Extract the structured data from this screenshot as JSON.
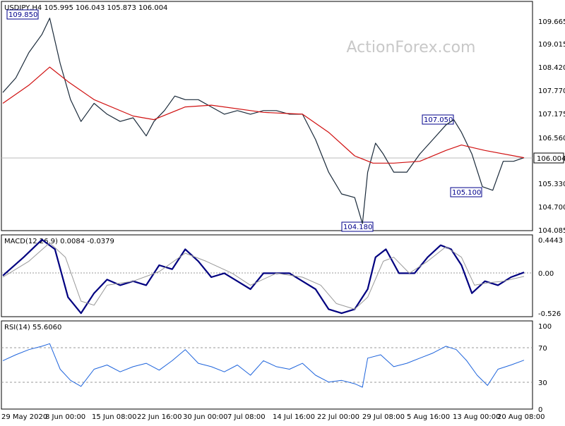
{
  "header": {
    "symbol_line": "USDJPY,H4  105.995 106.043 105.873 106.004",
    "watermark": "ActionForex.com"
  },
  "price_panel": {
    "y_ticks": [
      "109.665",
      "109.015",
      "108.420",
      "107.770",
      "107.175",
      "106.560",
      "105.330",
      "104.700",
      "104.085"
    ],
    "last_price_tag": "106.004",
    "annotations": [
      {
        "text": "109.850"
      },
      {
        "text": "107.050"
      },
      {
        "text": "105.100"
      },
      {
        "text": "104.180"
      }
    ]
  },
  "macd_panel": {
    "label": "MACD(12,26,9) 0.0084 -0.0379",
    "y_ticks": [
      "0.4443",
      "0.00",
      "-0.526"
    ]
  },
  "rsi_panel": {
    "label": "RSI(14) 55.6060",
    "y_ticks": [
      "100",
      "70",
      "30",
      "0"
    ]
  },
  "x_ticks": [
    "29 May 2020",
    "8 Jun 00:00",
    "15 Jun 08:00",
    "22 Jun 16:00",
    "30 Jun 00:00",
    "7 Jul 08:00",
    "14 Jul 16:00",
    "22 Jul 00:00",
    "29 Jul 08:00",
    "5 Aug 16:00",
    "13 Aug 00:00",
    "20 Aug 08:00"
  ],
  "chart_data": [
    {
      "type": "line",
      "title": "USDJPY,H4",
      "ylim": [
        104.085,
        110.0
      ],
      "series": [
        {
          "name": "USDJPY",
          "points": [
            [
              0,
              107.8
            ],
            [
              5,
              108.2
            ],
            [
              10,
              108.9
            ],
            [
              15,
              109.4
            ],
            [
              18,
              109.85
            ],
            [
              22,
              108.6
            ],
            [
              26,
              107.6
            ],
            [
              30,
              107.0
            ],
            [
              35,
              107.5
            ],
            [
              40,
              107.2
            ],
            [
              45,
              107.0
            ],
            [
              50,
              107.1
            ],
            [
              55,
              106.6
            ],
            [
              58,
              107.0
            ],
            [
              62,
              107.3
            ],
            [
              66,
              107.7
            ],
            [
              70,
              107.6
            ],
            [
              75,
              107.6
            ],
            [
              80,
              107.4
            ],
            [
              85,
              107.2
            ],
            [
              90,
              107.3
            ],
            [
              95,
              107.2
            ],
            [
              100,
              107.3
            ],
            [
              105,
              107.3
            ],
            [
              110,
              107.2
            ],
            [
              115,
              107.2
            ],
            [
              120,
              106.5
            ],
            [
              125,
              105.6
            ],
            [
              130,
              105.0
            ],
            [
              135,
              104.9
            ],
            [
              138,
              104.18
            ],
            [
              140,
              105.6
            ],
            [
              143,
              106.4
            ],
            [
              146,
              106.1
            ],
            [
              150,
              105.6
            ],
            [
              155,
              105.6
            ],
            [
              160,
              106.1
            ],
            [
              165,
              106.5
            ],
            [
              170,
              106.9
            ],
            [
              173,
              107.05
            ],
            [
              176,
              106.7
            ],
            [
              180,
              106.1
            ],
            [
              184,
              105.2
            ],
            [
              188,
              105.1
            ],
            [
              192,
              105.9
            ],
            [
              196,
              105.9
            ],
            [
              200,
              106.0
            ]
          ]
        },
        {
          "name": "MA",
          "points": [
            [
              0,
              107.5
            ],
            [
              10,
              108.0
            ],
            [
              18,
              108.5
            ],
            [
              25,
              108.1
            ],
            [
              35,
              107.6
            ],
            [
              50,
              107.15
            ],
            [
              58,
              107.05
            ],
            [
              70,
              107.4
            ],
            [
              80,
              107.45
            ],
            [
              100,
              107.25
            ],
            [
              115,
              107.2
            ],
            [
              125,
              106.7
            ],
            [
              135,
              106.05
            ],
            [
              142,
              105.85
            ],
            [
              150,
              105.85
            ],
            [
              160,
              105.9
            ],
            [
              170,
              106.2
            ],
            [
              176,
              106.35
            ],
            [
              185,
              106.2
            ],
            [
              200,
              106.0
            ]
          ]
        }
      ]
    },
    {
      "type": "line",
      "title": "MACD(12,26,9)",
      "ylim": [
        -0.526,
        0.4443
      ],
      "series": [
        {
          "name": "MACD",
          "points": [
            [
              0,
              -0.03
            ],
            [
              8,
              0.2
            ],
            [
              15,
              0.42
            ],
            [
              20,
              0.3
            ],
            [
              25,
              -0.3
            ],
            [
              30,
              -0.5
            ],
            [
              35,
              -0.25
            ],
            [
              40,
              -0.08
            ],
            [
              45,
              -0.15
            ],
            [
              50,
              -0.1
            ],
            [
              55,
              -0.15
            ],
            [
              60,
              0.1
            ],
            [
              65,
              0.05
            ],
            [
              70,
              0.3
            ],
            [
              75,
              0.15
            ],
            [
              80,
              -0.05
            ],
            [
              85,
              0.0
            ],
            [
              90,
              -0.1
            ],
            [
              95,
              -0.2
            ],
            [
              100,
              0.0
            ],
            [
              105,
              0.0
            ],
            [
              110,
              0.0
            ],
            [
              115,
              -0.1
            ],
            [
              120,
              -0.2
            ],
            [
              125,
              -0.45
            ],
            [
              130,
              -0.5
            ],
            [
              135,
              -0.45
            ],
            [
              140,
              -0.2
            ],
            [
              143,
              0.2
            ],
            [
              147,
              0.3
            ],
            [
              152,
              0.0
            ],
            [
              158,
              0.0
            ],
            [
              163,
              0.2
            ],
            [
              168,
              0.35
            ],
            [
              172,
              0.3
            ],
            [
              176,
              0.1
            ],
            [
              180,
              -0.25
            ],
            [
              185,
              -0.1
            ],
            [
              190,
              -0.15
            ],
            [
              195,
              -0.05
            ],
            [
              200,
              0.01
            ]
          ]
        },
        {
          "name": "Signal",
          "points": [
            [
              0,
              -0.05
            ],
            [
              10,
              0.15
            ],
            [
              18,
              0.38
            ],
            [
              24,
              0.2
            ],
            [
              30,
              -0.35
            ],
            [
              35,
              -0.4
            ],
            [
              40,
              -0.15
            ],
            [
              50,
              -0.1
            ],
            [
              60,
              0.02
            ],
            [
              70,
              0.25
            ],
            [
              78,
              0.15
            ],
            [
              88,
              0.0
            ],
            [
              95,
              -0.15
            ],
            [
              105,
              0.0
            ],
            [
              115,
              -0.05
            ],
            [
              122,
              -0.15
            ],
            [
              128,
              -0.38
            ],
            [
              135,
              -0.45
            ],
            [
              140,
              -0.3
            ],
            [
              146,
              0.15
            ],
            [
              150,
              0.2
            ],
            [
              156,
              0.0
            ],
            [
              163,
              0.15
            ],
            [
              170,
              0.33
            ],
            [
              176,
              0.2
            ],
            [
              181,
              -0.15
            ],
            [
              186,
              -0.12
            ],
            [
              192,
              -0.1
            ],
            [
              200,
              -0.04
            ]
          ]
        }
      ]
    },
    {
      "type": "line",
      "title": "RSI(14)",
      "ylim": [
        0,
        100
      ],
      "series": [
        {
          "name": "RSI",
          "points": [
            [
              0,
              55
            ],
            [
              5,
              62
            ],
            [
              10,
              68
            ],
            [
              15,
              72
            ],
            [
              18,
              75
            ],
            [
              22,
              45
            ],
            [
              26,
              32
            ],
            [
              30,
              25
            ],
            [
              35,
              45
            ],
            [
              40,
              50
            ],
            [
              45,
              42
            ],
            [
              50,
              48
            ],
            [
              55,
              52
            ],
            [
              60,
              44
            ],
            [
              65,
              55
            ],
            [
              70,
              68
            ],
            [
              75,
              52
            ],
            [
              80,
              48
            ],
            [
              85,
              42
            ],
            [
              90,
              50
            ],
            [
              95,
              38
            ],
            [
              100,
              55
            ],
            [
              105,
              48
            ],
            [
              110,
              45
            ],
            [
              115,
              52
            ],
            [
              120,
              38
            ],
            [
              125,
              30
            ],
            [
              130,
              32
            ],
            [
              135,
              28
            ],
            [
              138,
              24
            ],
            [
              140,
              58
            ],
            [
              145,
              62
            ],
            [
              150,
              48
            ],
            [
              155,
              52
            ],
            [
              160,
              58
            ],
            [
              165,
              64
            ],
            [
              170,
              72
            ],
            [
              174,
              68
            ],
            [
              178,
              55
            ],
            [
              182,
              38
            ],
            [
              186,
              26
            ],
            [
              190,
              45
            ],
            [
              195,
              50
            ],
            [
              200,
              55.6
            ]
          ]
        }
      ]
    }
  ]
}
